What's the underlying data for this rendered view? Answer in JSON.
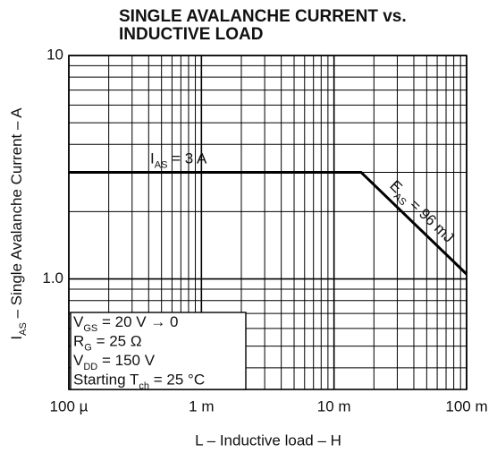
{
  "chart_data": {
    "type": "line",
    "title": [
      "SINGLE AVALANCHE CURRENT vs.",
      "INDUCTIVE LOAD"
    ],
    "x_label": "L – Inductive load – H",
    "y_label": [
      {
        "t": "I"
      },
      {
        "t": "AS",
        "sub": true
      },
      {
        "t": " – Single Avalanche Current – A"
      }
    ],
    "xscale": "log",
    "yscale": "log",
    "grid": true,
    "xlim": [
      0.0001,
      0.1
    ],
    "ylim": [
      0.32,
      10
    ],
    "xticks": [
      {
        "value": 0.0001,
        "label": "100 µ"
      },
      {
        "value": 0.001,
        "label": "1 m"
      },
      {
        "value": 0.01,
        "label": "10 m"
      },
      {
        "value": 0.1,
        "label": "100 m"
      }
    ],
    "yticks": [
      {
        "value": 1,
        "label": "1.0"
      },
      10
    ],
    "xminor": [
      0.0002,
      0.0003,
      0.0004,
      0.0005,
      0.0006,
      0.0007,
      0.0008,
      0.0009,
      0.002,
      0.003,
      0.004,
      0.005,
      0.006,
      0.007,
      0.008,
      0.009,
      0.02,
      0.03,
      0.04,
      0.05,
      0.06,
      0.07,
      0.08,
      0.09
    ],
    "yminor": [
      0.4,
      0.5,
      0.6,
      0.7,
      0.8,
      0.9,
      2,
      3,
      4,
      5,
      6,
      7,
      8,
      9
    ],
    "x": [
      0.0001,
      0.016,
      0.1
    ],
    "series": [
      {
        "name": "IAS",
        "color": "#000000",
        "values": [
          3,
          3,
          1.05
        ]
      }
    ],
    "annotations": {
      "current": [
        {
          "t": "I"
        },
        {
          "t": "AS",
          "sub": true
        },
        {
          "t": " = 3 A"
        }
      ],
      "energy": [
        {
          "t": "E"
        },
        {
          "t": "AS",
          "sub": true
        },
        {
          "t": " = 96 mJ"
        }
      ],
      "conditions": [
        [
          {
            "t": "V"
          },
          {
            "t": "GS",
            "sub": true
          },
          {
            "t": " = 20 V → 0"
          }
        ],
        [
          {
            "t": "R"
          },
          {
            "t": "G",
            "sub": true
          },
          {
            "t": " = 25 Ω"
          }
        ],
        [
          {
            "t": "V"
          },
          {
            "t": "DD",
            "sub": true
          },
          {
            "t": " = 150 V"
          }
        ],
        [
          {
            "t": "Starting T"
          },
          {
            "t": "ch",
            "sub": true
          },
          {
            "t": " = 25 °C"
          }
        ]
      ]
    }
  }
}
